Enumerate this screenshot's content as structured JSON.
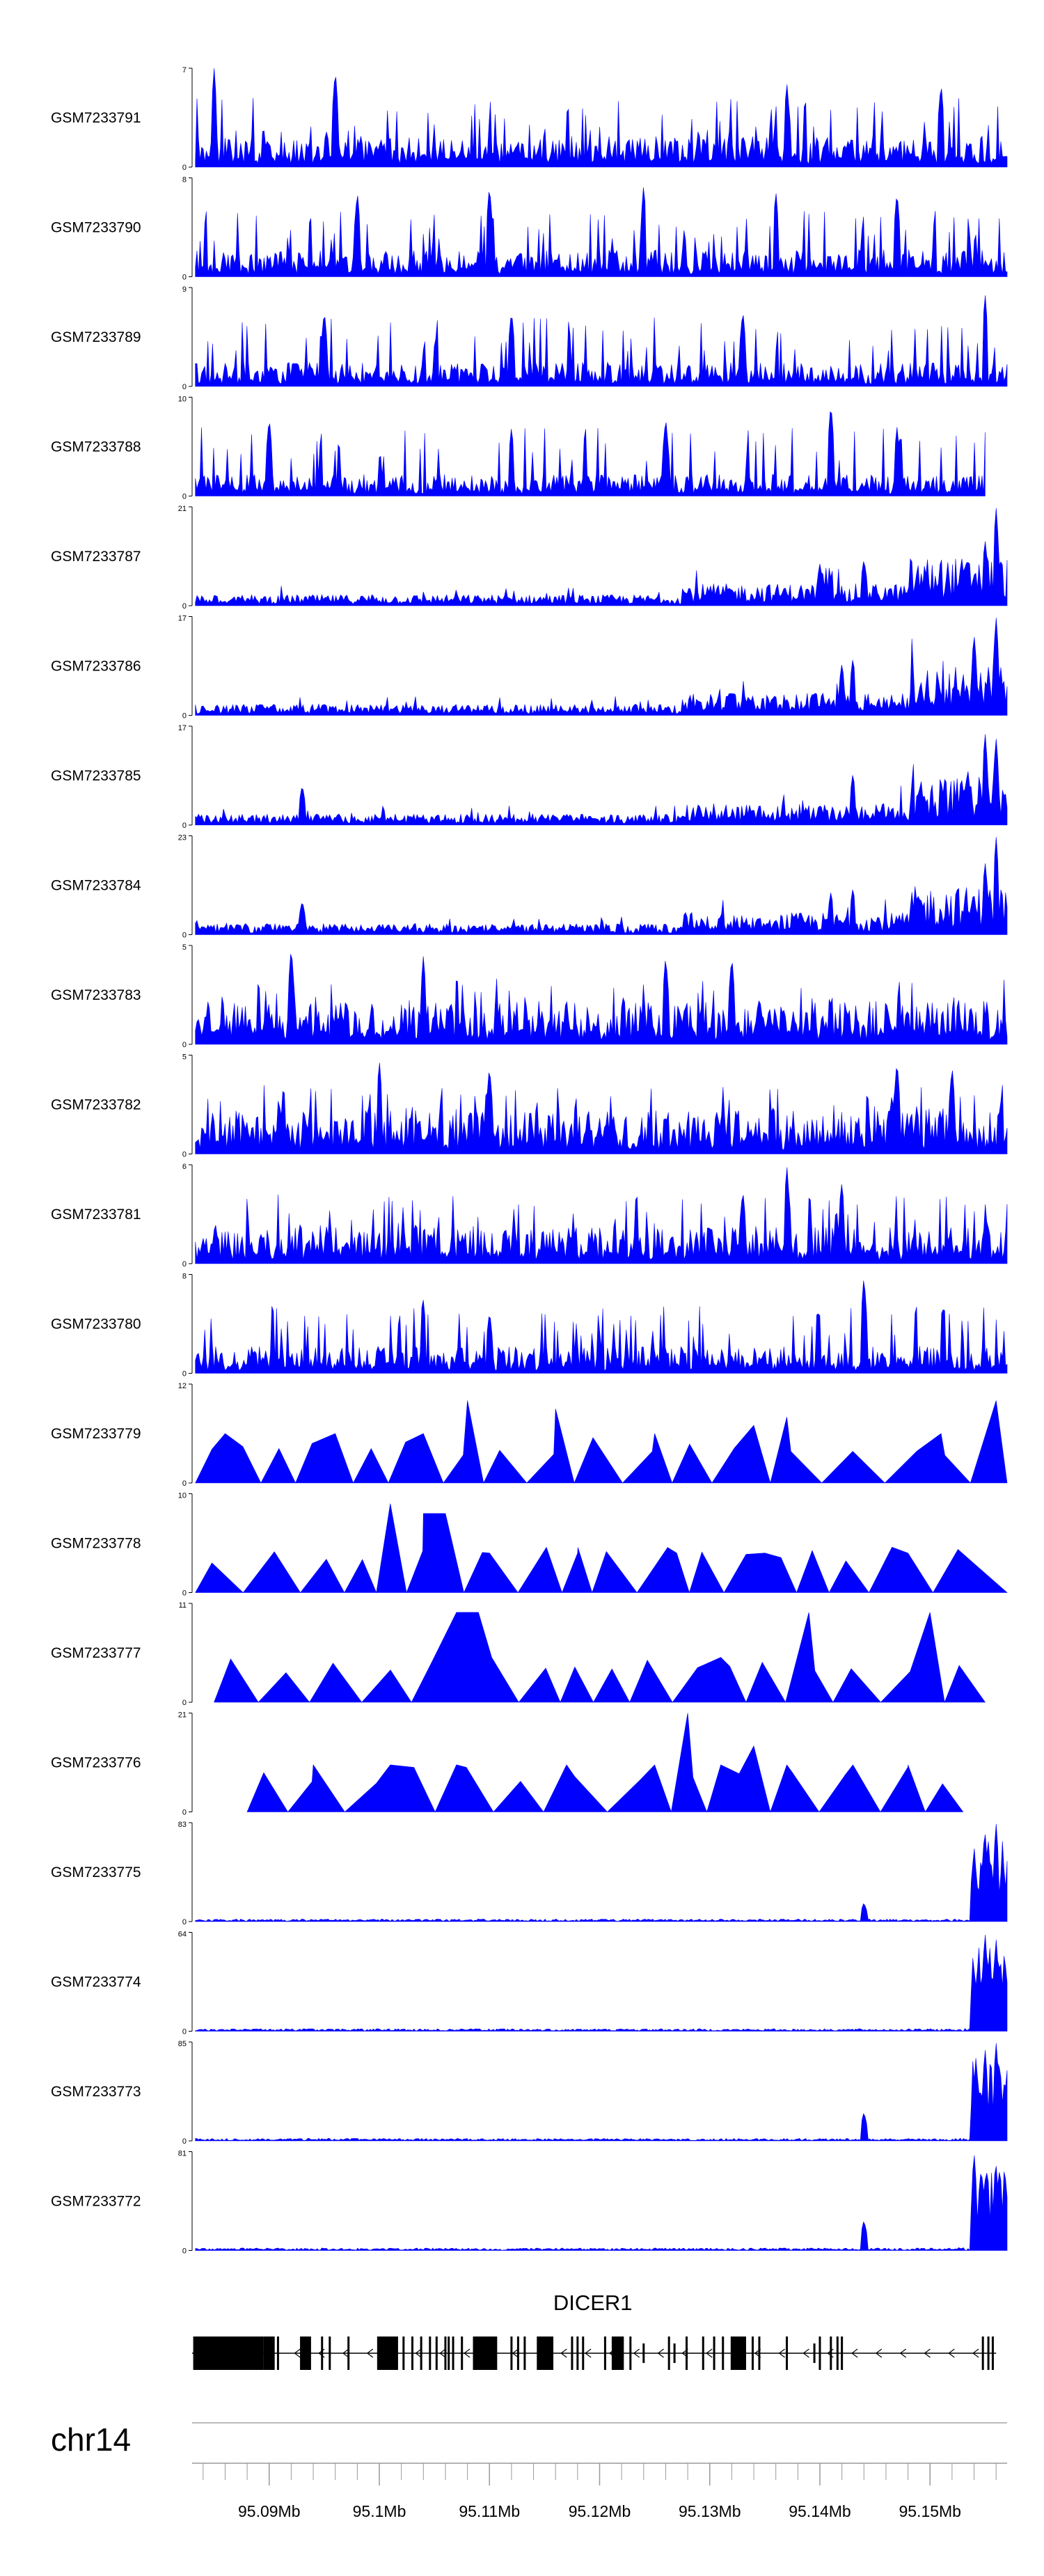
{
  "chart_data": {
    "type": "area",
    "title": "",
    "xlabel": "",
    "ylabel": "",
    "color": "#0000ff",
    "chromosome": "chr14",
    "x_range": [
      95.083,
      95.157
    ],
    "x_ticks": [
      {
        "value": 95.09,
        "label": "95.09Mb"
      },
      {
        "value": 95.1,
        "label": "95.1Mb"
      },
      {
        "value": 95.11,
        "label": "95.11Mb"
      },
      {
        "value": 95.12,
        "label": "95.12Mb"
      },
      {
        "value": 95.13,
        "label": "95.13Mb"
      },
      {
        "value": 95.14,
        "label": "95.14Mb"
      },
      {
        "value": 95.15,
        "label": "95.15Mb"
      }
    ],
    "gene": {
      "name": "DICER1",
      "strand": "-",
      "start": 95.083,
      "end": 95.156
    },
    "tracks": [
      {
        "name": "GSM7233791",
        "ymax": 7,
        "pattern": "noise",
        "seed": 11,
        "peaks": [
          [
            95.085,
            7
          ],
          [
            95.096,
            7
          ],
          [
            95.137,
            6
          ],
          [
            95.151,
            6
          ]
        ]
      },
      {
        "name": "GSM7233790",
        "ymax": 8,
        "pattern": "noise",
        "seed": 12,
        "peaks": [
          [
            95.098,
            7
          ],
          [
            95.11,
            7.5
          ],
          [
            95.124,
            7.5
          ],
          [
            95.136,
            7
          ],
          [
            95.147,
            7
          ]
        ]
      },
      {
        "name": "GSM7233789",
        "ymax": 9,
        "pattern": "noise",
        "seed": 13,
        "peaks": [
          [
            95.095,
            7
          ],
          [
            95.112,
            7
          ],
          [
            95.133,
            7
          ],
          [
            95.155,
            8.5
          ]
        ]
      },
      {
        "name": "GSM7233788",
        "ymax": 10,
        "pattern": "noise",
        "seed": 14,
        "peaks": [
          [
            95.09,
            8
          ],
          [
            95.112,
            7
          ],
          [
            95.126,
            8
          ],
          [
            95.141,
            9.5
          ],
          [
            95.147,
            7
          ]
        ],
        "end": 95.155
      },
      {
        "name": "GSM7233787",
        "ymax": 21,
        "pattern": "rising",
        "seed": 15,
        "peaks": [
          [
            95.14,
            9
          ],
          [
            95.144,
            10
          ],
          [
            95.155,
            14
          ],
          [
            95.156,
            21
          ]
        ]
      },
      {
        "name": "GSM7233786",
        "ymax": 17,
        "pattern": "rising",
        "seed": 16,
        "peaks": [
          [
            95.142,
            9
          ],
          [
            95.143,
            10
          ],
          [
            95.154,
            14
          ],
          [
            95.156,
            17
          ]
        ]
      },
      {
        "name": "GSM7233785",
        "ymax": 17,
        "pattern": "rising",
        "seed": 17,
        "peaks": [
          [
            95.093,
            7
          ],
          [
            95.143,
            9
          ],
          [
            95.155,
            16
          ],
          [
            95.156,
            15
          ]
        ]
      },
      {
        "name": "GSM7233784",
        "ymax": 23,
        "pattern": "rising",
        "seed": 18,
        "peaks": [
          [
            95.093,
            8
          ],
          [
            95.141,
            10
          ],
          [
            95.143,
            11
          ],
          [
            95.155,
            17
          ],
          [
            95.156,
            23
          ]
        ]
      },
      {
        "name": "GSM7233783",
        "ymax": 5,
        "pattern": "noise",
        "seed": 19,
        "peaks": [
          [
            95.092,
            5
          ],
          [
            95.104,
            4.5
          ],
          [
            95.126,
            4.5
          ],
          [
            95.132,
            4.5
          ]
        ]
      },
      {
        "name": "GSM7233782",
        "ymax": 5,
        "pattern": "noise",
        "seed": 20,
        "peaks": [
          [
            95.1,
            4.8
          ],
          [
            95.11,
            4.5
          ],
          [
            95.147,
            4.8
          ],
          [
            95.152,
            4.5
          ]
        ]
      },
      {
        "name": "GSM7233781",
        "ymax": 6,
        "pattern": "noise",
        "seed": 21,
        "peaks": [
          [
            95.137,
            6
          ],
          [
            95.133,
            4.5
          ],
          [
            95.142,
            5
          ]
        ]
      },
      {
        "name": "GSM7233780",
        "ymax": 8,
        "pattern": "noise",
        "seed": 22,
        "peaks": [
          [
            95.104,
            6
          ],
          [
            95.144,
            8
          ],
          [
            95.11,
            5
          ]
        ]
      },
      {
        "name": "GSM7233779",
        "ymax": 12,
        "pattern": "sparse",
        "seed": 23,
        "peaks": [
          [
            95.086,
            6
          ],
          [
            95.096,
            6
          ],
          [
            95.104,
            6
          ],
          [
            95.108,
            10
          ],
          [
            95.116,
            9
          ],
          [
            95.125,
            6
          ],
          [
            95.134,
            7
          ],
          [
            95.137,
            8
          ],
          [
            95.151,
            6
          ],
          [
            95.156,
            10
          ]
        ]
      },
      {
        "name": "GSM7233778",
        "ymax": 10,
        "pattern": "sparse",
        "seed": 24,
        "peaks": [
          [
            95.101,
            9
          ],
          [
            95.104,
            8
          ],
          [
            95.106,
            8
          ],
          [
            95.11,
            4
          ],
          [
            95.118,
            4
          ],
          [
            95.127,
            4
          ],
          [
            95.135,
            4
          ],
          [
            95.148,
            4
          ]
        ]
      },
      {
        "name": "GSM7233777",
        "ymax": 11,
        "pattern": "sparse",
        "seed": 25,
        "start": 95.085,
        "end": 95.155,
        "peaks": [
          [
            95.107,
            10
          ],
          [
            95.109,
            10
          ],
          [
            95.131,
            5
          ],
          [
            95.139,
            10
          ],
          [
            95.15,
            10
          ]
        ]
      },
      {
        "name": "GSM7233776",
        "ymax": 21,
        "pattern": "sparse",
        "seed": 26,
        "start": 95.088,
        "end": 95.153,
        "peaks": [
          [
            95.094,
            10
          ],
          [
            95.101,
            10
          ],
          [
            95.107,
            10
          ],
          [
            95.117,
            10
          ],
          [
            95.125,
            10
          ],
          [
            95.128,
            21
          ],
          [
            95.131,
            10
          ],
          [
            95.134,
            14
          ],
          [
            95.137,
            10
          ],
          [
            95.143,
            10
          ],
          [
            95.148,
            10
          ]
        ]
      },
      {
        "name": "GSM7233775",
        "ymax": 83,
        "pattern": "terminal",
        "seed": 27,
        "peaks": [
          [
            95.144,
            16
          ],
          [
            95.154,
            60
          ],
          [
            95.155,
            75
          ],
          [
            95.156,
            83
          ]
        ]
      },
      {
        "name": "GSM7233774",
        "ymax": 64,
        "pattern": "terminal",
        "seed": 28,
        "peaks": [
          [
            95.154,
            40
          ],
          [
            95.155,
            64
          ],
          [
            95.156,
            60
          ]
        ]
      },
      {
        "name": "GSM7233773",
        "ymax": 85,
        "pattern": "terminal",
        "seed": 29,
        "peaks": [
          [
            95.144,
            25
          ],
          [
            95.155,
            80
          ],
          [
            95.156,
            85
          ]
        ]
      },
      {
        "name": "GSM7233772",
        "ymax": 81,
        "pattern": "terminal",
        "seed": 30,
        "peaks": [
          [
            95.144,
            25
          ],
          [
            95.154,
            81
          ],
          [
            95.155,
            60
          ],
          [
            95.156,
            70
          ]
        ]
      }
    ]
  }
}
